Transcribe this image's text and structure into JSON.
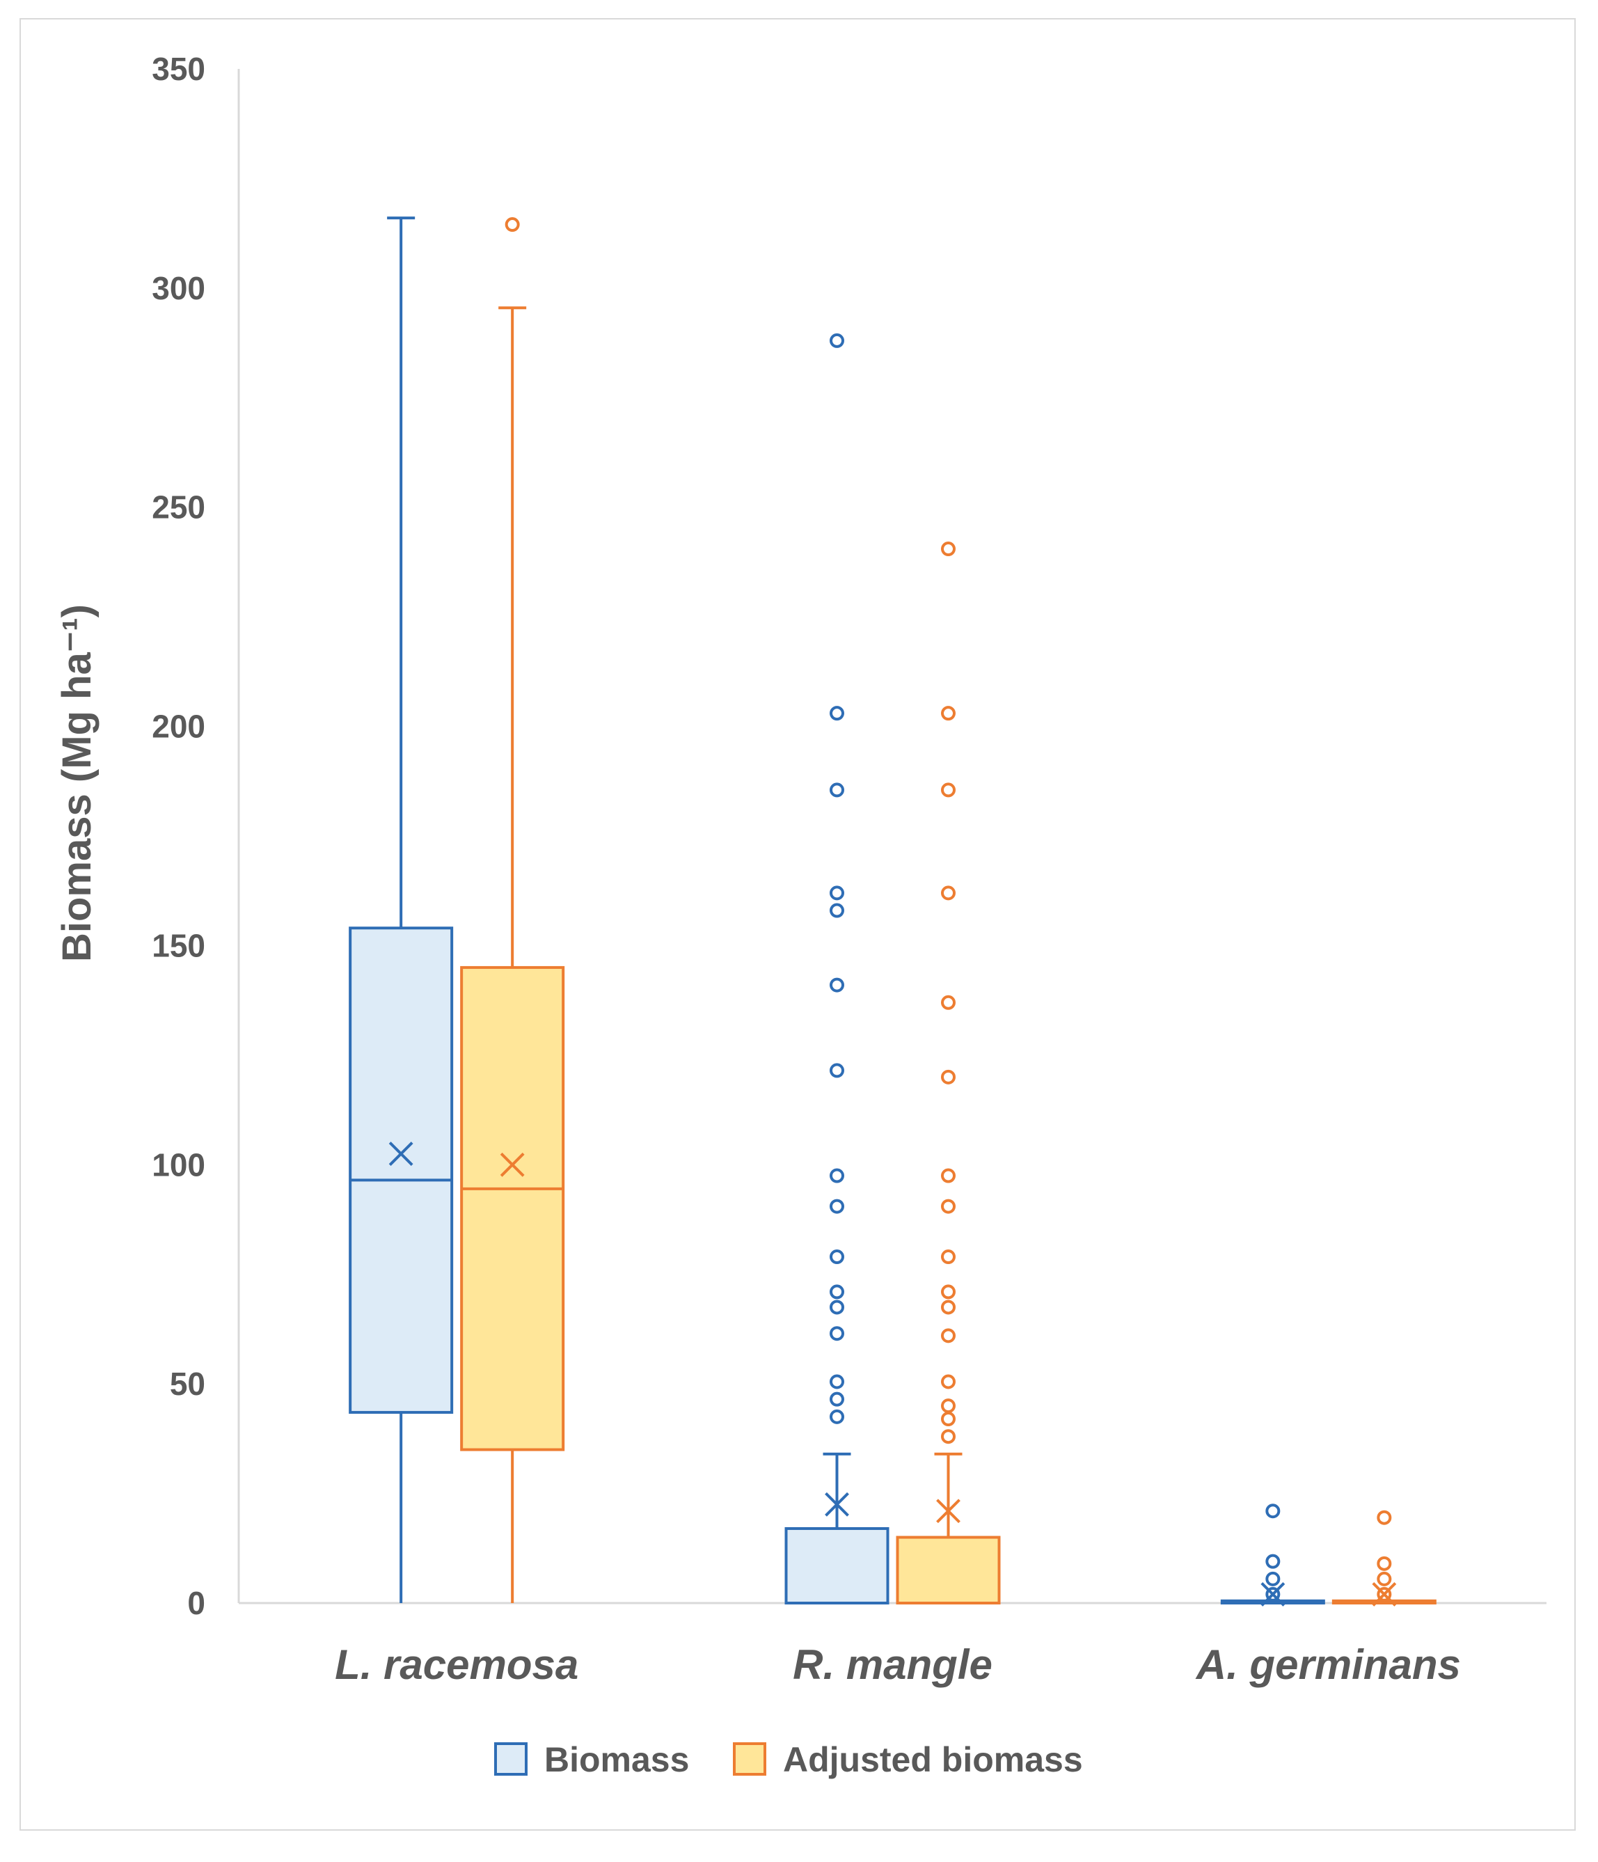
{
  "chart_data": {
    "type": "boxplot",
    "title": "",
    "xlabel": "",
    "ylabel": "Biomass (Mg ha⁻¹)",
    "ylim": [
      0,
      350
    ],
    "yticks": [
      0,
      50,
      100,
      150,
      200,
      250,
      300,
      350
    ],
    "ytick_labels": [
      "0",
      "50",
      "100",
      "150",
      "200",
      "250",
      "300",
      "350"
    ],
    "categories": [
      "L. racemosa",
      "R. mangle",
      "A. germinans"
    ],
    "legend_position": "bottom",
    "series": [
      {
        "name": "Biomass",
        "fill": "#ddebf7",
        "stroke": "#2e6db5",
        "boxes": [
          {
            "min": 0,
            "q1": 43.5,
            "median": 96.5,
            "q3": 154,
            "max": 316,
            "mean": 102.5,
            "outliers": []
          },
          {
            "min": 0,
            "q1": 0,
            "median": 0,
            "q3": 17,
            "max": 34,
            "mean": 22.5,
            "outliers": [
              288,
              203,
              185.5,
              162,
              158,
              141,
              121.5,
              97.5,
              90.5,
              79,
              71,
              67.5,
              61.5,
              50.5,
              46.5,
              42.5
            ]
          },
          {
            "min": 0,
            "q1": 0,
            "median": 0,
            "q3": 0.5,
            "max": 0.5,
            "mean": 2,
            "outliers": [
              21,
              9.5,
              5.5,
              2
            ]
          }
        ]
      },
      {
        "name": "Adjusted biomass",
        "fill": "#ffe699",
        "stroke": "#ed7d31",
        "boxes": [
          {
            "min": 0,
            "q1": 35,
            "median": 94.5,
            "q3": 145,
            "max": 295.5,
            "mean": 100,
            "outliers": [
              314.5
            ]
          },
          {
            "min": 0,
            "q1": 0,
            "median": 0,
            "q3": 15,
            "max": 34,
            "mean": 21,
            "outliers": [
              240.5,
              203,
              185.5,
              162,
              137,
              120,
              97.5,
              90.5,
              79,
              71,
              67.5,
              61,
              50.5,
              45,
              42,
              38
            ]
          },
          {
            "min": 0,
            "q1": 0,
            "median": 0,
            "q3": 0.5,
            "max": 0.5,
            "mean": 2,
            "outliers": [
              19.5,
              9,
              5.5,
              2
            ]
          }
        ]
      }
    ]
  }
}
